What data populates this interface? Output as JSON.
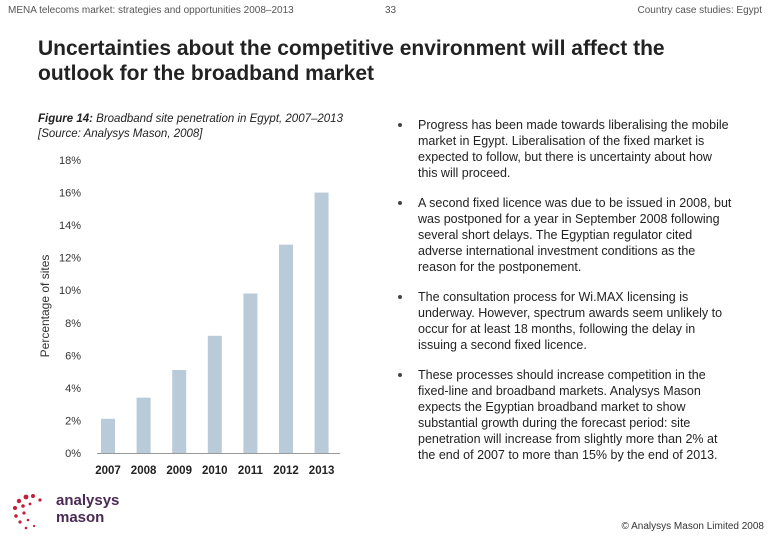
{
  "header": {
    "left": "MENA telecoms market: strategies and opportunities 2008–2013",
    "page": "33",
    "right": "Country case studies: Egypt"
  },
  "title": "Uncertainties about the competitive environment will affect the outlook for the broadband market",
  "figure": {
    "label": "Figure 14:",
    "caption": " Broadband site penetration in Egypt, 2007–2013",
    "source": "[Source: Analysys Mason, 2008]"
  },
  "chart_data": {
    "type": "bar",
    "categories": [
      "2007",
      "2008",
      "2009",
      "2010",
      "2011",
      "2012",
      "2013"
    ],
    "values": [
      2.1,
      3.4,
      5.1,
      7.2,
      9.8,
      12.8,
      16.0
    ],
    "ylabel": "Percentage of sites",
    "ylim": [
      0,
      18
    ],
    "yticks": [
      "0%",
      "2%",
      "4%",
      "6%",
      "8%",
      "10%",
      "12%",
      "14%",
      "16%",
      "18%"
    ],
    "grid": false,
    "bar_color": "#b9cbd9"
  },
  "bullets": [
    "Progress has been made towards liberalising the mobile market in Egypt. Liberalisation of the fixed market is expected to follow, but there is uncertainty about how this will proceed.",
    "A second fixed licence was due to be issued in 2008, but was postponed for a year in September 2008 following several short delays. The Egyptian regulator cited adverse international investment conditions as the reason for the postponement.",
    "The consultation process for Wi.MAX licensing is underway. However, spectrum awards seem unlikely to occur for at least 18 months, following the delay in issuing a second fixed licence.",
    "These processes should increase competition in the fixed-line and broadband markets. Analysys Mason expects the Egyptian broadband market to show substantial growth during the forecast period: site penetration will increase from slightly more than 2% at the end of 2007 to more than 15% by the end of 2013."
  ],
  "logo": {
    "line1": "analysys",
    "line2": "mason",
    "icon": "dotted-swirl-logo",
    "color": "#c41e3a"
  },
  "footer": "© Analysys Mason Limited 2008"
}
